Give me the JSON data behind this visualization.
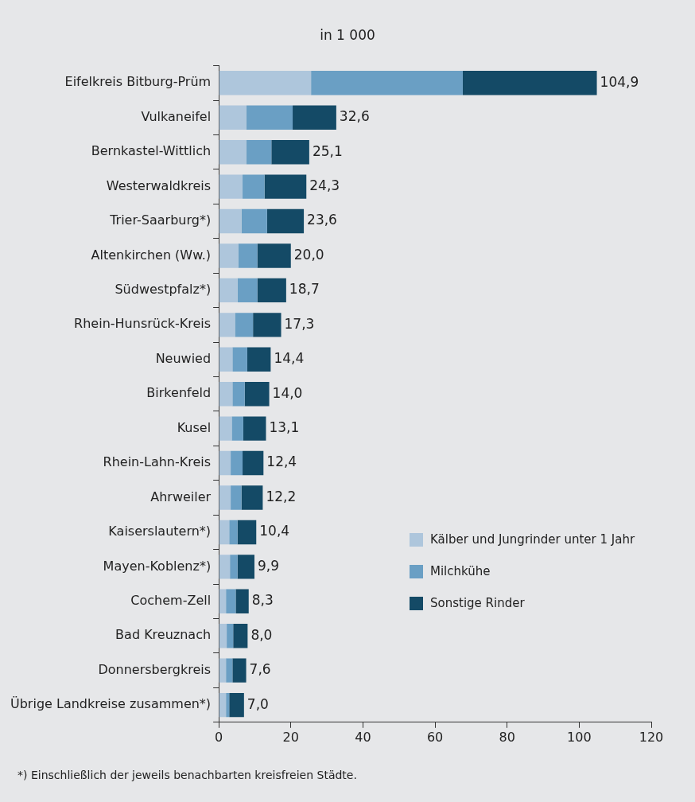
{
  "chart_data": {
    "type": "bar",
    "orientation": "horizontal",
    "stacked": true,
    "title": "in 1 000",
    "categories": [
      "Eifelkreis Bitburg-Prüm",
      "Vulkaneifel",
      "Bernkastel-Wittlich",
      "Westerwaldkreis",
      "Trier-Saarburg*)",
      "Altenkirchen (Ww.)",
      "Südwestpfalz*)",
      "Rhein-Hunsrück-Kreis",
      "Neuwied",
      "Birkenfeld",
      "Kusel",
      "Rhein-Lahn-Kreis",
      "Ahrweiler",
      "Kaiserslautern*)",
      "Mayen-Koblenz*)",
      "Cochem-Zell",
      "Bad Kreuznach",
      "Donnersbergkreis",
      "Übrige Landkreise zusammen*)"
    ],
    "series": [
      {
        "name": "Kälber und Jungrinder unter 1 Jahr",
        "color": "#aec6dc",
        "values": [
          25.6,
          7.7,
          7.7,
          6.6,
          6.3,
          5.4,
          5.2,
          4.5,
          3.8,
          3.8,
          3.6,
          3.3,
          3.3,
          2.9,
          3.1,
          2.0,
          2.2,
          2.0,
          2.0
        ]
      },
      {
        "name": "Milchkühe",
        "color": "#6a9fc4",
        "values": [
          42.1,
          12.8,
          6.9,
          6.1,
          7.1,
          5.3,
          5.5,
          5.0,
          4.1,
          3.4,
          3.2,
          3.3,
          3.0,
          2.3,
          2.1,
          2.7,
          1.8,
          1.8,
          0.9
        ]
      },
      {
        "name": "Sonstige Rinder",
        "color": "#144a66",
        "values": [
          37.2,
          12.1,
          10.5,
          11.6,
          10.2,
          9.3,
          8.0,
          7.8,
          6.5,
          6.8,
          6.3,
          5.8,
          5.9,
          5.2,
          4.7,
          3.6,
          4.0,
          3.8,
          4.1
        ]
      }
    ],
    "totals": [
      "104,9",
      "32,6",
      "25,1",
      "24,3",
      "23,6",
      "20,0",
      "18,7",
      "17,3",
      "14,4",
      "14,0",
      "13,1",
      "12,4",
      "12,2",
      "10,4",
      "9,9",
      "8,3",
      "8,0",
      "7,6",
      "7,0"
    ],
    "xlim": [
      0,
      120
    ],
    "xticks": [
      0,
      20,
      40,
      60,
      80,
      100,
      120
    ],
    "grid": false,
    "legend": "right",
    "annotations": [
      "*) Einschließlich der jeweils benachbarten kreisfreien Städte."
    ]
  }
}
